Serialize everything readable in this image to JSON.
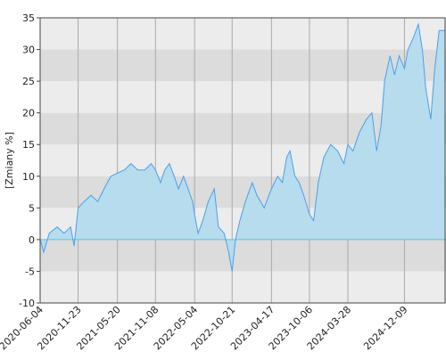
{
  "chart_data": {
    "type": "area",
    "ylabel": "[Zmiany %]",
    "color": "#4aa0ec",
    "fill": "#b6dcee",
    "xlim": [
      "2020-06-04",
      "2025-06-15"
    ],
    "xticks": [
      "2020-06-04",
      "2020-11-23",
      "2021-05-20",
      "2021-11-08",
      "2022-05-04",
      "2022-10-21",
      "2023-04-17",
      "2023-10-06",
      "2024-03-28",
      "2024-12-09"
    ],
    "ylim": [
      -10,
      35
    ],
    "yticks": [
      -10,
      -5,
      0,
      5,
      10,
      15,
      20,
      25,
      30,
      35
    ],
    "grid": true,
    "x": [
      "2020-06-04",
      "2020-06-20",
      "2020-07-15",
      "2020-08-20",
      "2020-09-20",
      "2020-10-20",
      "2020-11-05",
      "2020-11-23",
      "2020-12-20",
      "2021-01-20",
      "2021-02-20",
      "2021-03-20",
      "2021-04-20",
      "2021-05-20",
      "2021-06-20",
      "2021-07-20",
      "2021-08-20",
      "2021-09-20",
      "2021-10-20",
      "2021-11-08",
      "2021-12-01",
      "2021-12-20",
      "2022-01-10",
      "2022-02-01",
      "2022-02-20",
      "2022-03-15",
      "2022-04-05",
      "2022-04-25",
      "2022-05-04",
      "2022-05-20",
      "2022-06-10",
      "2022-07-05",
      "2022-08-01",
      "2022-08-20",
      "2022-09-15",
      "2022-10-05",
      "2022-10-21",
      "2022-11-05",
      "2022-11-25",
      "2022-12-20",
      "2023-01-20",
      "2023-02-10",
      "2023-03-15",
      "2023-04-17",
      "2023-05-15",
      "2023-06-05",
      "2023-06-25",
      "2023-07-10",
      "2023-08-01",
      "2023-08-20",
      "2023-09-10",
      "2023-10-06",
      "2023-10-25",
      "2023-11-15",
      "2023-12-10",
      "2024-01-10",
      "2024-02-10",
      "2024-03-10",
      "2024-03-28",
      "2024-04-20",
      "2024-05-20",
      "2024-06-20",
      "2024-07-15",
      "2024-08-05",
      "2024-08-25",
      "2024-09-10",
      "2024-10-05",
      "2024-10-25",
      "2024-11-15",
      "2024-12-09",
      "2024-12-25",
      "2025-01-20",
      "2025-02-10",
      "2025-02-28",
      "2025-03-15",
      "2025-04-07",
      "2025-04-25",
      "2025-05-15",
      "2025-06-10"
    ],
    "values": [
      0,
      -2,
      1,
      2,
      1,
      2,
      -1,
      5,
      6,
      7,
      6,
      8,
      10,
      10.5,
      11,
      12,
      11,
      11,
      12,
      11,
      9,
      11,
      12,
      10,
      8,
      10,
      8,
      6,
      4,
      1,
      3,
      6,
      8,
      2,
      1,
      -2,
      -5,
      0,
      3,
      6,
      9,
      7,
      5,
      8,
      10,
      9,
      13,
      14,
      10,
      9,
      7,
      4,
      3,
      9,
      13,
      15,
      14,
      12,
      15,
      14,
      17,
      19,
      20,
      14,
      18,
      25,
      29,
      26,
      29,
      27,
      30,
      32,
      34,
      30,
      24,
      19,
      27,
      33,
      33
    ]
  }
}
